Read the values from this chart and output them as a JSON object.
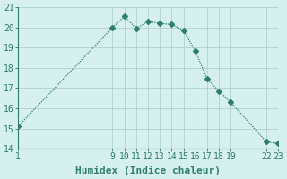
{
  "x": [
    1,
    9,
    10,
    11,
    12,
    13,
    14,
    15,
    16,
    17,
    18,
    19,
    22,
    23
  ],
  "y": [
    15.1,
    20.0,
    20.55,
    19.95,
    20.3,
    20.2,
    20.15,
    19.85,
    18.85,
    17.45,
    16.85,
    16.3,
    14.35,
    14.25
  ],
  "line_color": "#2e7d6e",
  "marker": "D",
  "marker_size": 3,
  "bg_color": "#d6f0ef",
  "grid_color": "#b0d0ce",
  "axis_color": "#2e7d6e",
  "xlabel": "Humidex (Indice chaleur)",
  "xlim": [
    1,
    23
  ],
  "ylim": [
    14,
    21
  ],
  "xticks": [
    1,
    9,
    10,
    11,
    12,
    13,
    14,
    15,
    16,
    17,
    18,
    19,
    22,
    23
  ],
  "yticks": [
    14,
    15,
    16,
    17,
    18,
    19,
    20,
    21
  ],
  "xlabel_fontsize": 8,
  "tick_fontsize": 7
}
